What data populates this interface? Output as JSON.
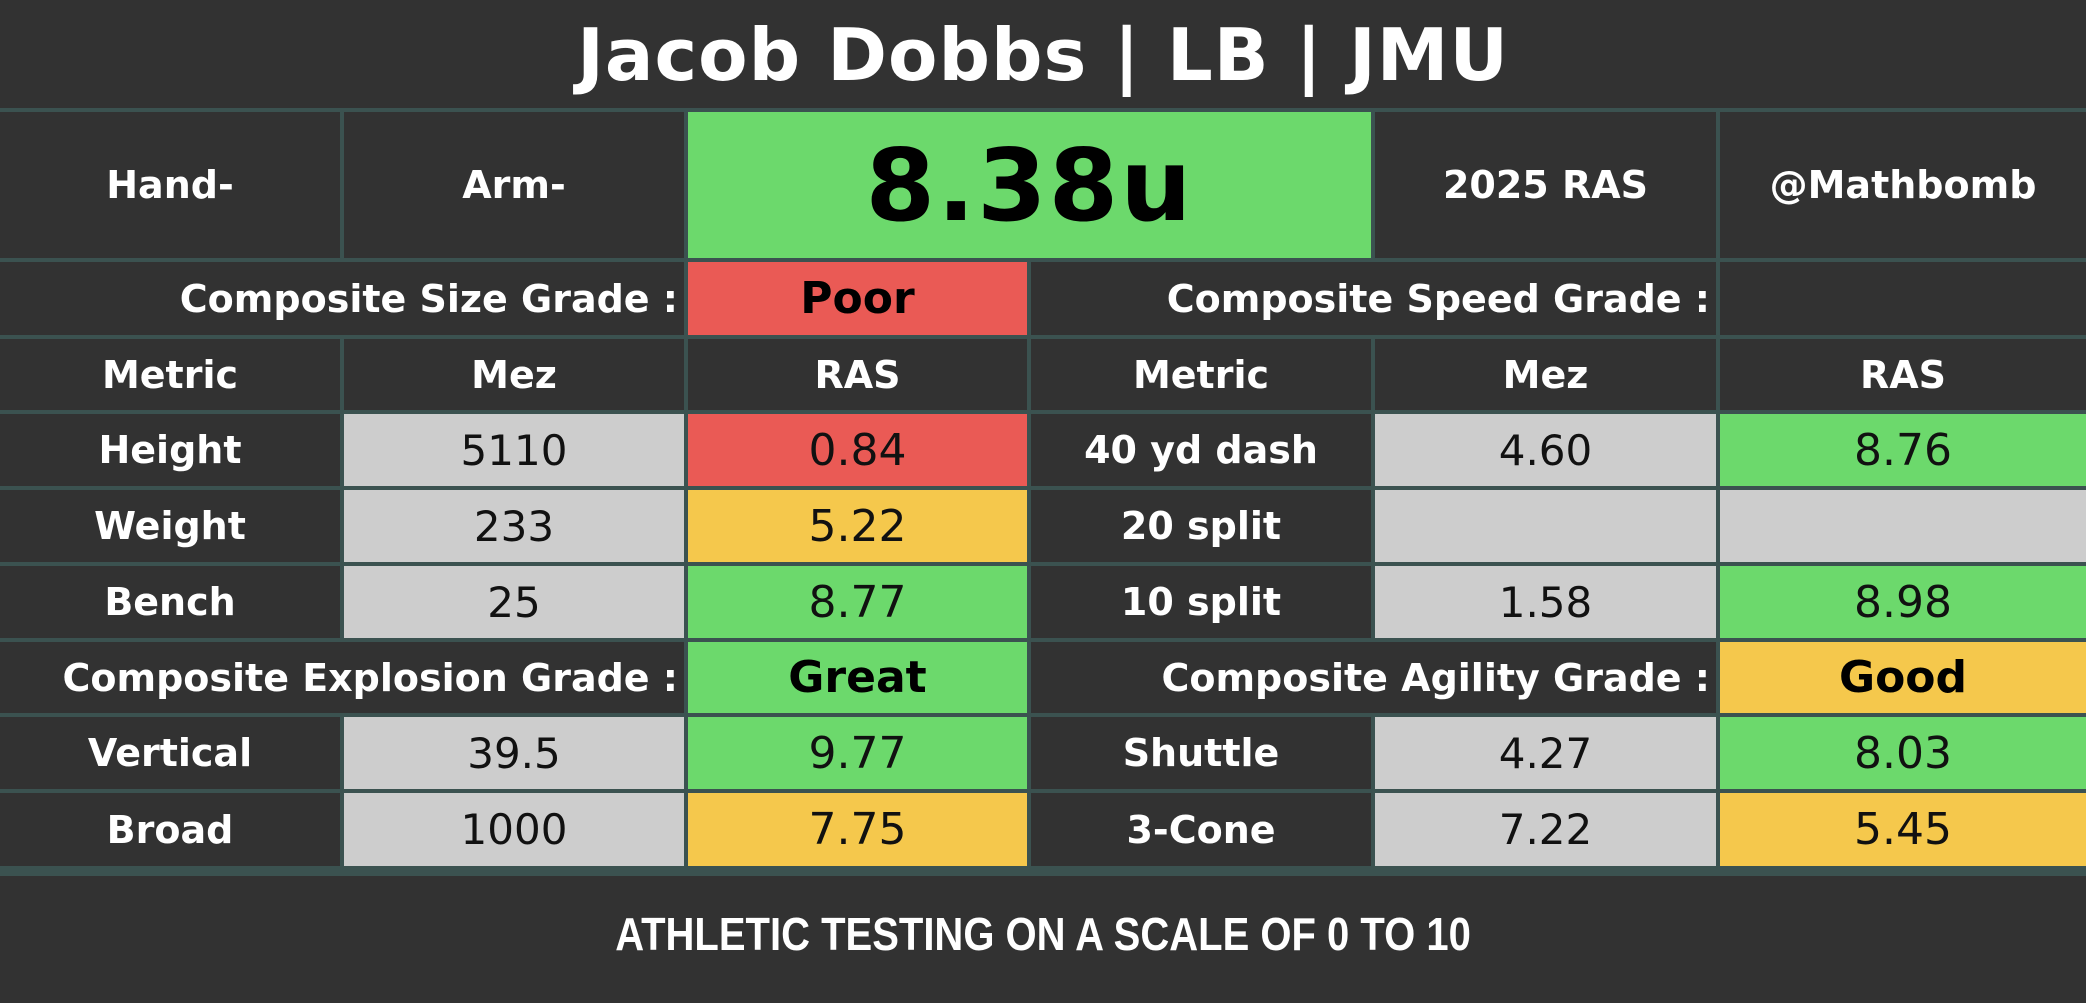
{
  "title": "Jacob Dobbs | LB | JMU",
  "header": {
    "hand": "Hand-",
    "arm": "Arm-",
    "score": "8.38u",
    "year_label": "2025 RAS",
    "handle": "@Mathbomb"
  },
  "colors": {
    "background": "#323232",
    "grid_line": "#3b5250",
    "green": "#6cd96c",
    "yellow": "#f5c84c",
    "red": "#ea5a55",
    "gray": "#cdcdcd"
  },
  "size_section": {
    "label": "Composite Size Grade :",
    "grade": "Poor",
    "grade_color": "red"
  },
  "speed_section": {
    "label": "Composite Speed Grade :",
    "grade": "",
    "grade_color": "none"
  },
  "explosion_section": {
    "label": "Composite Explosion Grade :",
    "grade": "Great",
    "grade_color": "green"
  },
  "agility_section": {
    "label": "Composite Agility Grade :",
    "grade": "Good",
    "grade_color": "yellow"
  },
  "columns": {
    "metric": "Metric",
    "mez": "Mez",
    "ras": "RAS"
  },
  "left_rows": [
    {
      "metric": "Height",
      "mez": "5110",
      "ras": "0.84",
      "color": "red"
    },
    {
      "metric": "Weight",
      "mez": "233",
      "ras": "5.22",
      "color": "yellow"
    },
    {
      "metric": "Bench",
      "mez": "25",
      "ras": "8.77",
      "color": "green"
    }
  ],
  "right_rows": [
    {
      "metric": "40 yd dash",
      "mez": "4.60",
      "ras": "8.76",
      "color": "green"
    },
    {
      "metric": "20 split",
      "mez": "",
      "ras": "",
      "color": "gray"
    },
    {
      "metric": "10 split",
      "mez": "1.58",
      "ras": "8.98",
      "color": "green"
    }
  ],
  "explosion_rows": [
    {
      "metric": "Vertical",
      "mez": "39.5",
      "ras": "9.77",
      "color": "green"
    },
    {
      "metric": "Broad",
      "mez": "1000",
      "ras": "7.75",
      "color": "yellow"
    }
  ],
  "agility_rows": [
    {
      "metric": "Shuttle",
      "mez": "4.27",
      "ras": "8.03",
      "color": "green"
    },
    {
      "metric": "3-Cone",
      "mez": "7.22",
      "ras": "5.45",
      "color": "yellow"
    }
  ],
  "footer": "ATHLETIC TESTING ON A SCALE OF 0 TO 10"
}
